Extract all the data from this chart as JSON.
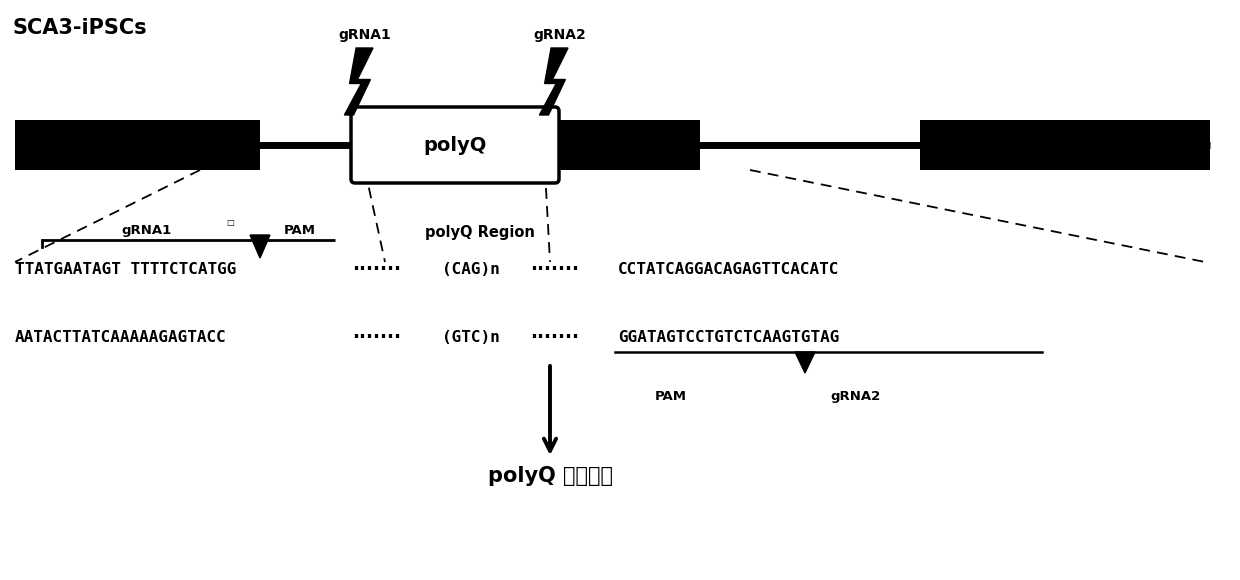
{
  "fig_width": 12.4,
  "fig_height": 5.8,
  "bg_color": "#ffffff",
  "title_text": "SCA3-iPSCs",
  "grna1_label": "gRNA1",
  "grna2_label": "gRNA2",
  "polyq_label": "polyQ",
  "polyq_region_label": "polyQ Region",
  "seq1_left": "TTATGAATAGT TTTTCTCATGG",
  "seq1_right": "CCTATCAGGACAGAGTTCACATC",
  "seq2_left": "AATACTTATCAAAAAGAGTACC",
  "seq2_right": "GGATAGTCCTGTCTCAAGTGTAG",
  "seq_cag": "(CAG)n",
  "seq_gtc": "(GTC)n",
  "grna1_bracket": "gRNA1",
  "pam1_label": "PAM",
  "pam2_label": "PAM",
  "grna2_label2": "gRNA2",
  "arrow_label_1": "polyQ ",
  "arrow_label_2": "切割敖除",
  "font_size_seq": 11.5,
  "font_size_label": 10,
  "font_size_title": 15
}
